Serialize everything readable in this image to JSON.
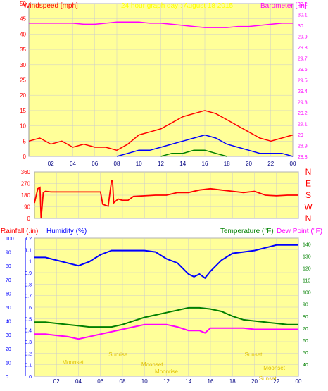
{
  "header": {
    "title": "24 hour graph day : August 18 2015"
  },
  "chart_data": [
    {
      "type": "line",
      "left_axis_label": "Windspeed [mph]",
      "right_axis_label": "Barometer [.in]",
      "x_ticks": [
        "02",
        "04",
        "06",
        "08",
        "10",
        "12",
        "14",
        "16",
        "18",
        "20",
        "22",
        "00"
      ],
      "y_left_ticks": [
        "0",
        "5",
        "10",
        "15",
        "20",
        "25",
        "30",
        "35",
        "40",
        "45",
        "50"
      ],
      "y_right_ticks": [
        "28.8",
        "28.9",
        "29",
        "29.1",
        "29.2",
        "29.3",
        "29.4",
        "29.5",
        "29.6",
        "29.7",
        "29.8",
        "29.9",
        "30",
        "30.1",
        "30.2"
      ],
      "y_left_range": [
        0,
        50
      ],
      "y_right_range": [
        28.8,
        30.2
      ],
      "x_range_hours": [
        0,
        24
      ],
      "series": [
        {
          "color": "#ff00ff",
          "axis": "right",
          "x": [
            0,
            1,
            2,
            3,
            4,
            5,
            6,
            7,
            8,
            9,
            10,
            11,
            12,
            13,
            14,
            15,
            16,
            17,
            18,
            19,
            20,
            21,
            22,
            23,
            24
          ],
          "values": [
            30.02,
            30.02,
            30.02,
            30.02,
            30.02,
            30.01,
            30.01,
            30.02,
            30.03,
            30.03,
            30.03,
            30.02,
            30.02,
            30.01,
            30.0,
            29.99,
            29.98,
            29.98,
            29.98,
            29.99,
            29.99,
            30.0,
            30.01,
            30.02,
            30.02
          ]
        },
        {
          "color": "#ff0000",
          "axis": "left",
          "x": [
            0,
            1,
            2,
            3,
            4,
            5,
            6,
            7,
            8,
            9,
            10,
            11,
            12,
            13,
            14,
            15,
            16,
            17,
            18,
            19,
            20,
            21,
            22,
            23,
            24
          ],
          "values": [
            5,
            6,
            4,
            5,
            3,
            4,
            3,
            3,
            2,
            4,
            7,
            8,
            9,
            11,
            13,
            14,
            15,
            14,
            12,
            10,
            8,
            6,
            5,
            6,
            7
          ]
        },
        {
          "color": "#0000ff",
          "axis": "left",
          "x": [
            8,
            9,
            10,
            11,
            12,
            13,
            14,
            15,
            16,
            17,
            18,
            19,
            20,
            21,
            22,
            23,
            24
          ],
          "values": [
            0,
            1,
            2,
            2,
            3,
            4,
            5,
            6,
            7,
            6,
            4,
            3,
            2,
            1,
            1,
            1,
            0
          ]
        },
        {
          "color": "#008000",
          "axis": "left",
          "x": [
            12,
            13,
            14,
            15,
            16,
            17,
            18
          ],
          "values": [
            0,
            1,
            1,
            2,
            2,
            1,
            0
          ]
        }
      ]
    },
    {
      "type": "line",
      "right_axis_label": "N W S E N",
      "x_ticks": [],
      "y_left_ticks": [
        "0",
        "90",
        "180",
        "270",
        "360"
      ],
      "y_range": [
        0,
        360
      ],
      "x_range_hours": [
        0,
        24
      ],
      "series": [
        {
          "color": "#ff0000",
          "x": [
            0,
            0.3,
            0.5,
            0.6,
            0.8,
            1,
            1.5,
            2,
            3,
            4,
            5,
            6,
            6.2,
            6.5,
            6.7,
            7,
            7.1,
            7.2,
            7.6,
            8,
            8.5,
            9,
            10,
            11,
            12,
            13,
            14,
            15,
            16,
            17,
            18,
            19,
            20,
            21,
            22,
            23,
            24
          ],
          "values": [
            120,
            230,
            240,
            0,
            200,
            210,
            205,
            205,
            205,
            205,
            205,
            205,
            110,
            100,
            95,
            290,
            290,
            120,
            150,
            140,
            140,
            170,
            175,
            180,
            180,
            200,
            200,
            220,
            230,
            220,
            210,
            200,
            210,
            180,
            175,
            180,
            180
          ]
        }
      ]
    },
    {
      "type": "line",
      "left_axis_label_1": "Rainfall (.in)",
      "left_axis_label_2": "Humidity (%)",
      "right_axis_label_1": "Temperature (°F)",
      "right_axis_label_2": "Dew Point (°F)",
      "x_ticks": [
        "02",
        "04",
        "06",
        "08",
        "10",
        "12",
        "14",
        "16",
        "18",
        "20",
        "22",
        "00"
      ],
      "y_humidity_ticks": [
        "0",
        "10",
        "20",
        "30",
        "40",
        "50",
        "60",
        "70",
        "80",
        "90",
        "100"
      ],
      "y_rain_ticks": [
        "0",
        "0.1",
        "0.2",
        "0.3",
        "0.4",
        "0.5",
        "0.6",
        "0.7",
        "0.8",
        "0.9",
        "1",
        "1.1",
        "1.2"
      ],
      "y_temp_ticks": [
        "40",
        "50",
        "60",
        "70",
        "80",
        "90",
        "100",
        "110",
        "120",
        "130",
        "140"
      ],
      "humidity_range": [
        0,
        100
      ],
      "rain_range": [
        0,
        1.2
      ],
      "temp_range": [
        30,
        145
      ],
      "annotations": [
        "Moonset",
        "Sunrise",
        "Moonset",
        "Moonrise",
        "Sunset",
        "Moonset",
        "Sunset"
      ],
      "series": [
        {
          "color": "#0000ff",
          "axis": "humidity",
          "x": [
            0,
            1,
            2,
            3,
            4,
            5,
            6,
            7,
            8,
            9,
            10,
            11,
            12,
            13,
            14,
            14.5,
            15,
            15.5,
            16,
            17,
            18,
            19,
            20,
            21,
            22,
            23,
            24
          ],
          "values": [
            86,
            86,
            84,
            82,
            80,
            83,
            88,
            91,
            91,
            91,
            91,
            90,
            85,
            82,
            74,
            72,
            74,
            71,
            76,
            84,
            89,
            90,
            91,
            93,
            95,
            95,
            95
          ]
        },
        {
          "color": "#008000",
          "axis": "temp",
          "x": [
            0,
            1,
            2,
            3,
            4,
            5,
            6,
            7,
            8,
            9,
            10,
            11,
            12,
            13,
            14,
            15,
            16,
            17,
            18,
            19,
            20,
            21,
            22,
            23,
            24
          ],
          "values": [
            75,
            75,
            74,
            73,
            72,
            71,
            71,
            71,
            73,
            76,
            79,
            81,
            83,
            85,
            87,
            87,
            86,
            84,
            80,
            77,
            76,
            75,
            74,
            73,
            73
          ]
        },
        {
          "color": "#ff00ff",
          "axis": "temp",
          "x": [
            0,
            1,
            2,
            3,
            4,
            5,
            6,
            7,
            8,
            9,
            10,
            11,
            12,
            13,
            14,
            15,
            15.5,
            16,
            17,
            18,
            19,
            20,
            21,
            22,
            23,
            24
          ],
          "values": [
            65,
            65,
            64,
            63,
            61,
            63,
            65,
            67,
            69,
            71,
            73,
            73,
            73,
            71,
            68,
            68,
            66,
            70,
            70,
            70,
            70,
            69,
            69,
            69,
            69,
            69
          ]
        }
      ]
    }
  ]
}
